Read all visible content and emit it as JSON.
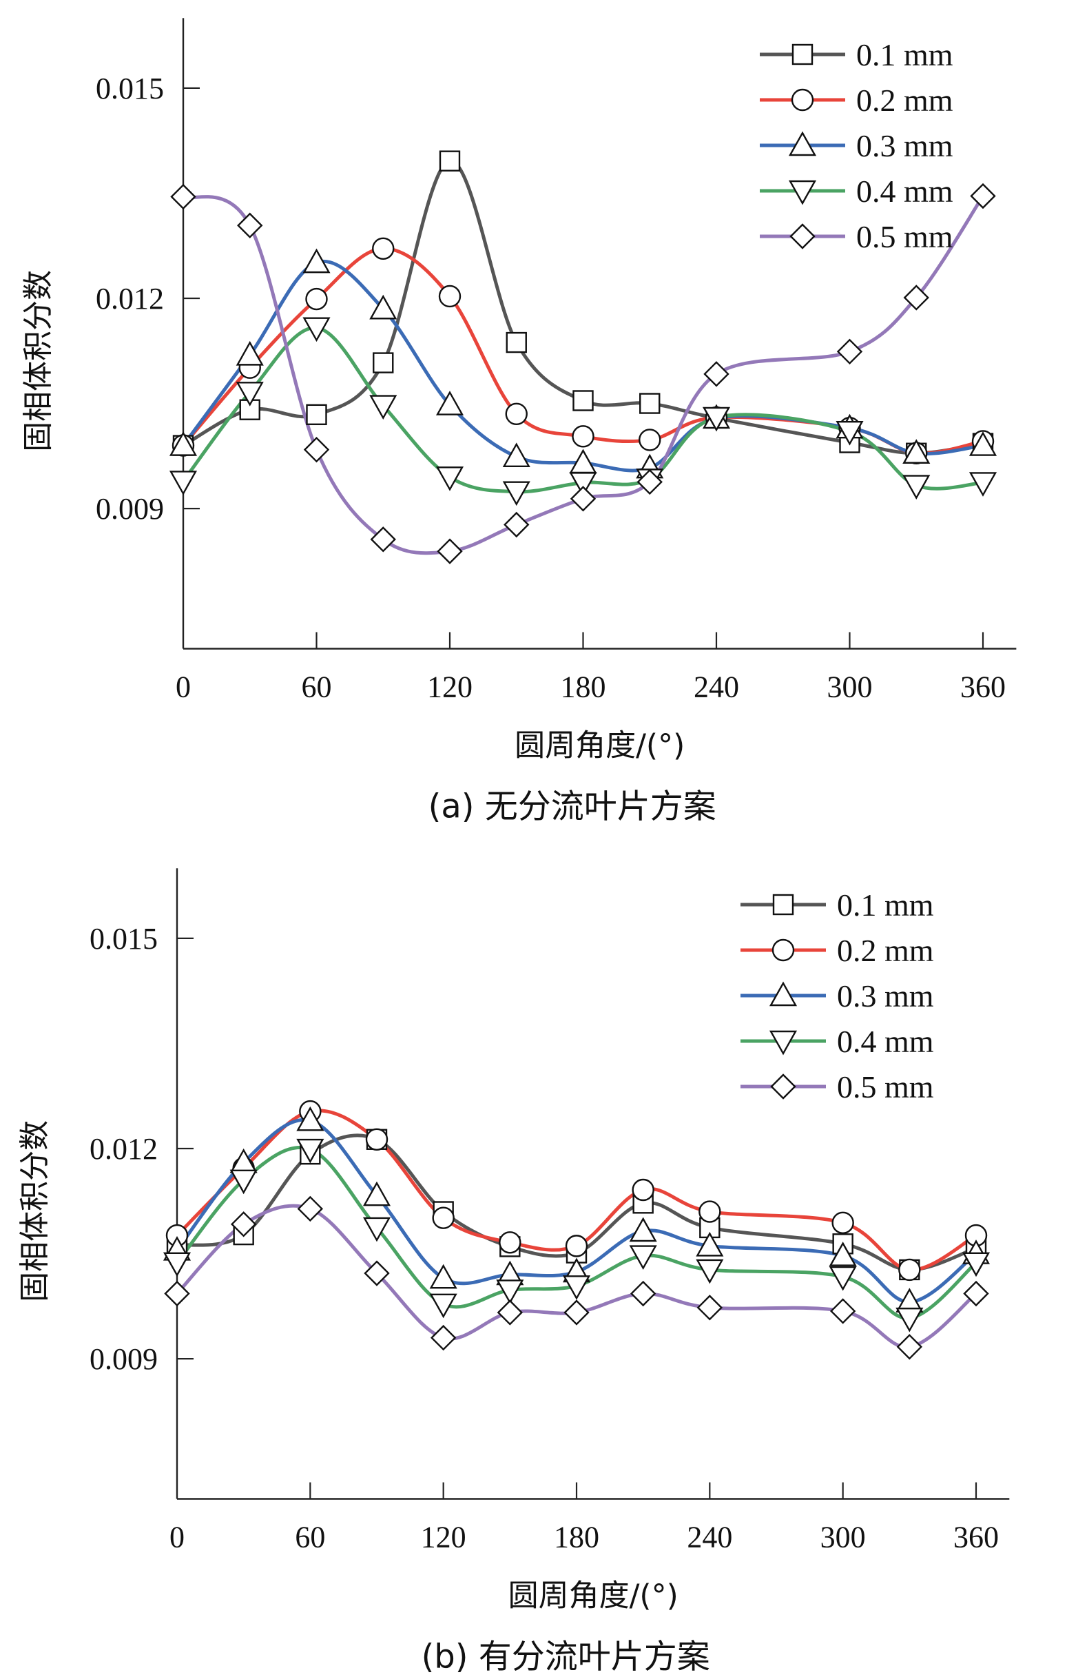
{
  "chart_data": [
    {
      "type": "line",
      "panel": "a",
      "caption": "(a) 无分流叶片方案",
      "title": "",
      "xlabel": "圆周角度/(°)",
      "ylabel": "固相体积分数",
      "xlim": [
        0,
        375
      ],
      "ylim": [
        0.007,
        0.016
      ],
      "xticks": [
        0,
        60,
        120,
        180,
        240,
        300,
        360
      ],
      "xtick_labels": [
        "0",
        "60",
        "120",
        "180",
        "240",
        "300",
        "360"
      ],
      "yticks": [
        0.009,
        0.012,
        0.015
      ],
      "ytick_labels": [
        "0.009",
        "0.012",
        "0.015"
      ],
      "grid": false,
      "legend_position": "top-right",
      "x": [
        0,
        30,
        60,
        90,
        120,
        150,
        180,
        210,
        240,
        300,
        330,
        360
      ],
      "series": [
        {
          "name": "0.1 mm",
          "color": "#555555",
          "marker": "square",
          "values": [
            0.0099,
            0.01041,
            0.01034,
            0.01108,
            0.01396,
            0.01137,
            0.01054,
            0.0105,
            0.01029,
            0.00994,
            0.00979,
            0.00993
          ]
        },
        {
          "name": "0.2 mm",
          "color": "#e8443a",
          "marker": "circle",
          "values": [
            0.0099,
            0.01101,
            0.01199,
            0.01271,
            0.01203,
            0.01035,
            0.01003,
            0.00998,
            0.0103,
            0.01015,
            0.00979,
            0.00996
          ]
        },
        {
          "name": "0.3 mm",
          "color": "#3b6bb5",
          "marker": "triangle-up",
          "values": [
            0.0099,
            0.01119,
            0.01251,
            0.01185,
            0.01048,
            0.00974,
            0.00965,
            0.00958,
            0.01029,
            0.01015,
            0.00979,
            0.0099
          ]
        },
        {
          "name": "0.4 mm",
          "color": "#4aa363",
          "marker": "triangle-down",
          "values": [
            0.00939,
            0.01066,
            0.01158,
            0.01047,
            0.00945,
            0.00924,
            0.00937,
            0.00942,
            0.0103,
            0.0101,
            0.00933,
            0.00937
          ]
        },
        {
          "name": "0.5 mm",
          "color": "#9378b8",
          "marker": "diamond",
          "values": [
            0.01345,
            0.01304,
            0.00984,
            0.00856,
            0.00839,
            0.00877,
            0.00914,
            0.00938,
            0.01092,
            0.01124,
            0.01201,
            0.01346
          ]
        }
      ]
    },
    {
      "type": "line",
      "panel": "b",
      "caption": "(b) 有分流叶片方案",
      "title": "",
      "xlabel": "圆周角度/(°)",
      "ylabel": "固相体积分数",
      "xlim": [
        0,
        375
      ],
      "ylim": [
        0.007,
        0.016
      ],
      "xticks": [
        0,
        60,
        120,
        180,
        240,
        300,
        360
      ],
      "xtick_labels": [
        "0",
        "60",
        "120",
        "180",
        "240",
        "300",
        "360"
      ],
      "yticks": [
        0.009,
        0.012,
        0.015
      ],
      "ytick_labels": [
        "0.009",
        "0.012",
        "0.015"
      ],
      "grid": false,
      "legend_position": "top-right",
      "x": [
        0,
        30,
        60,
        90,
        120,
        150,
        180,
        210,
        240,
        300,
        330,
        360
      ],
      "series": [
        {
          "name": "0.1 mm",
          "color": "#555555",
          "marker": "square",
          "values": [
            0.01062,
            0.01077,
            0.01192,
            0.01213,
            0.0111,
            0.0106,
            0.01051,
            0.01122,
            0.01087,
            0.01064,
            0.01027,
            0.01058
          ]
        },
        {
          "name": "0.2 mm",
          "color": "#e8443a",
          "marker": "circle",
          "values": [
            0.01076,
            0.01172,
            0.01253,
            0.01213,
            0.01101,
            0.01066,
            0.01061,
            0.01141,
            0.0111,
            0.01094,
            0.01027,
            0.01076
          ]
        },
        {
          "name": "0.3 mm",
          "color": "#3b6bb5",
          "marker": "triangle-up",
          "values": [
            0.01055,
            0.0118,
            0.0124,
            0.01133,
            0.01015,
            0.0102,
            0.01024,
            0.01082,
            0.01061,
            0.01047,
            0.00981,
            0.0105
          ]
        },
        {
          "name": "0.4 mm",
          "color": "#4aa363",
          "marker": "triangle-down",
          "values": [
            0.01037,
            0.01155,
            0.01199,
            0.01087,
            0.00978,
            0.00998,
            0.01004,
            0.01047,
            0.01027,
            0.01017,
            0.00958,
            0.01037
          ]
        },
        {
          "name": "0.5 mm",
          "color": "#9378b8",
          "marker": "diamond",
          "values": [
            0.00993,
            0.01092,
            0.01114,
            0.01022,
            0.0093,
            0.00966,
            0.00966,
            0.00993,
            0.00973,
            0.00968,
            0.00917,
            0.00993
          ]
        }
      ]
    }
  ]
}
